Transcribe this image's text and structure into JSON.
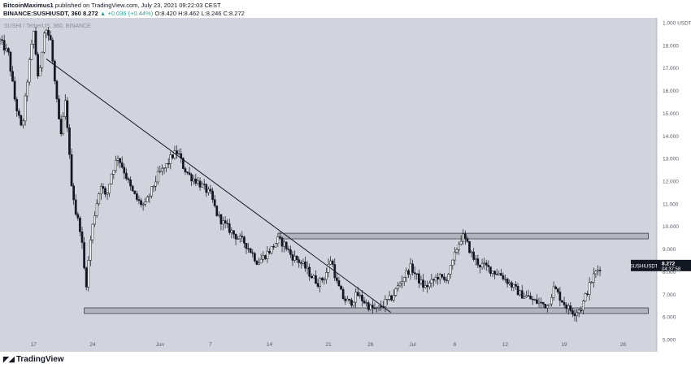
{
  "header": {
    "author": "BitcoinMaximus1",
    "published_text": "published on TradingView.com, July 23, 2021 09:22:03 CEST",
    "symbol_line": "BINANCE:SUSHIUSDT, 360",
    "price": "8.272",
    "change": "▲ +0.036 (+0.44%)",
    "ohlc": "O:8.420 H:8.462 L:8.246 C:8.272"
  },
  "legend": "SUSHI / TetherUS, 360, BINANCE",
  "price_label": {
    "symbol": "SUSHIUSDT",
    "value": "8.272",
    "countdown": "04:37:58"
  },
  "footer": {
    "logo_text": "TradingView"
  },
  "colors": {
    "chart_bg": "#d1d4dc",
    "candle": "#131722",
    "zone_fill": "#b2b5be",
    "axis_bg": "#ffffff",
    "label_bg": "#131722"
  },
  "chart_data": {
    "type": "candlestick",
    "symbol": "SUSHIUSDT",
    "interval": "360",
    "ylim": [
      5.0,
      19.0
    ],
    "y_ticks": [
      "19.000",
      "18.000",
      "17.000",
      "16.000",
      "15.000",
      "14.000",
      "13.000",
      "12.000",
      "11.000",
      "10.000",
      "9.000",
      "8.000",
      "7.000",
      "6.000",
      "5.000"
    ],
    "y_tick_values": [
      19,
      18,
      17,
      16,
      15,
      14,
      13,
      12,
      11,
      10,
      9,
      8,
      7,
      6,
      5
    ],
    "y_unit_label": "USDT",
    "x_ticks": [
      "17",
      "24",
      "Jun",
      "7",
      "14",
      "21",
      "26",
      "Jul",
      "6",
      "12",
      "19",
      "26"
    ],
    "x_tick_days": [
      17,
      24,
      32,
      38,
      45,
      52,
      57,
      62,
      67,
      73,
      80,
      87
    ],
    "x_range_days": [
      13,
      91
    ],
    "last_price": 8.272,
    "path": [
      [
        13.0,
        18.2
      ],
      [
        14.0,
        17.6
      ],
      [
        14.8,
        15.5
      ],
      [
        15.6,
        14.2
      ],
      [
        16.4,
        17.0
      ],
      [
        17.0,
        18.6
      ],
      [
        17.6,
        16.3
      ],
      [
        18.3,
        18.9
      ],
      [
        19.0,
        18.2
      ],
      [
        19.6,
        16.0
      ],
      [
        20.2,
        13.9
      ],
      [
        20.8,
        15.6
      ],
      [
        21.4,
        12.2
      ],
      [
        22.0,
        10.6
      ],
      [
        22.6,
        9.8
      ],
      [
        23.2,
        7.3
      ],
      [
        23.8,
        9.6
      ],
      [
        24.4,
        10.9
      ],
      [
        25.0,
        11.9
      ],
      [
        25.6,
        11.2
      ],
      [
        26.2,
        12.3
      ],
      [
        27.0,
        13.1
      ],
      [
        27.8,
        12.4
      ],
      [
        28.6,
        11.6
      ],
      [
        29.4,
        11.1
      ],
      [
        30.2,
        10.9
      ],
      [
        31.0,
        11.6
      ],
      [
        31.8,
        12.3
      ],
      [
        32.6,
        12.6
      ],
      [
        33.4,
        13.1
      ],
      [
        34.1,
        13.3
      ],
      [
        34.8,
        12.6
      ],
      [
        35.6,
        12.2
      ],
      [
        36.4,
        12.0
      ],
      [
        37.2,
        11.7
      ],
      [
        38.0,
        11.4
      ],
      [
        38.8,
        10.5
      ],
      [
        39.6,
        10.1
      ],
      [
        40.4,
        9.8
      ],
      [
        41.2,
        9.5
      ],
      [
        42.0,
        9.3
      ],
      [
        42.8,
        8.9
      ],
      [
        43.6,
        8.4
      ],
      [
        44.4,
        8.7
      ],
      [
        45.2,
        9.0
      ],
      [
        46.0,
        9.4
      ],
      [
        46.8,
        9.2
      ],
      [
        47.6,
        8.7
      ],
      [
        48.4,
        8.5
      ],
      [
        49.2,
        8.2
      ],
      [
        50.0,
        7.8
      ],
      [
        50.8,
        7.5
      ],
      [
        51.6,
        7.8
      ],
      [
        52.3,
        8.6
      ],
      [
        53.0,
        7.5
      ],
      [
        53.8,
        6.8
      ],
      [
        54.6,
        6.6
      ],
      [
        55.4,
        7.0
      ],
      [
        56.2,
        6.7
      ],
      [
        57.0,
        6.4
      ],
      [
        57.8,
        6.3
      ],
      [
        58.6,
        6.6
      ],
      [
        59.4,
        6.8
      ],
      [
        60.2,
        7.3
      ],
      [
        61.0,
        7.8
      ],
      [
        61.8,
        8.2
      ],
      [
        62.6,
        7.7
      ],
      [
        63.4,
        7.3
      ],
      [
        64.2,
        7.5
      ],
      [
        65.0,
        7.8
      ],
      [
        65.8,
        7.6
      ],
      [
        66.6,
        8.2
      ],
      [
        67.3,
        9.1
      ],
      [
        67.9,
        9.6
      ],
      [
        68.5,
        9.2
      ],
      [
        69.2,
        8.6
      ],
      [
        70.0,
        8.3
      ],
      [
        70.8,
        8.2
      ],
      [
        71.6,
        8.0
      ],
      [
        72.4,
        7.9
      ],
      [
        73.2,
        7.6
      ],
      [
        74.0,
        7.3
      ],
      [
        74.8,
        7.0
      ],
      [
        75.6,
        6.9
      ],
      [
        76.4,
        6.7
      ],
      [
        77.2,
        6.6
      ],
      [
        78.0,
        6.5
      ],
      [
        78.8,
        7.3
      ],
      [
        79.6,
        6.8
      ],
      [
        80.4,
        6.4
      ],
      [
        81.2,
        6.2
      ],
      [
        82.0,
        6.4
      ],
      [
        82.8,
        7.2
      ],
      [
        83.6,
        7.9
      ],
      [
        84.4,
        8.27
      ]
    ],
    "annotations": {
      "descending_trendline": {
        "start": [
          18.5,
          17.4
        ],
        "end": [
          59.4,
          6.2
        ]
      },
      "support_zone": {
        "x_from": 23.0,
        "x_to": 90.0,
        "y_from": 6.15,
        "y_to": 6.4
      },
      "resistance_zone": {
        "x_from": 46.0,
        "x_to": 90.0,
        "y_from": 9.45,
        "y_to": 9.7
      }
    }
  }
}
